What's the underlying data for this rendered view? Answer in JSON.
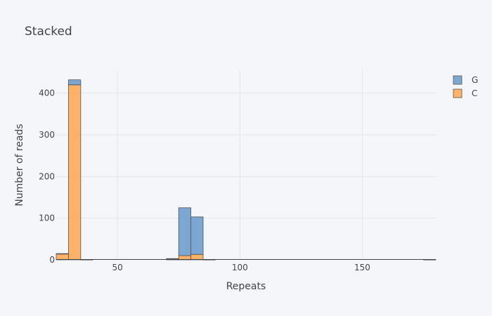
{
  "chart_data": {
    "type": "bar",
    "stacked": true,
    "title": "Stacked",
    "xlabel": "Repeats",
    "ylabel": "Number of reads",
    "xlim": [
      25,
      180
    ],
    "ylim": [
      0,
      455
    ],
    "bin_width": 5,
    "x_ticks": [
      50,
      100,
      150
    ],
    "y_ticks": [
      0,
      100,
      200,
      300,
      400
    ],
    "grid": true,
    "legend": "top-right",
    "bin_starts": [
      25,
      30,
      35,
      40,
      45,
      50,
      55,
      60,
      65,
      70,
      75,
      80,
      85,
      90,
      95,
      100,
      105,
      110,
      115,
      120,
      125,
      130,
      135,
      140,
      145,
      150,
      155,
      160,
      165,
      170,
      175
    ],
    "series": [
      {
        "name": "C",
        "color": "#ffa64d",
        "values": [
          14,
          420,
          1,
          0,
          0,
          0,
          0,
          0,
          0,
          2,
          10,
          13,
          1,
          0,
          0,
          0,
          0,
          0,
          0,
          0,
          0,
          0,
          0,
          0,
          0,
          0,
          0,
          0,
          0,
          0,
          0
        ]
      },
      {
        "name": "G",
        "color": "#6699cc",
        "values": [
          1,
          12,
          0,
          0,
          0,
          0,
          0,
          0,
          0,
          1,
          115,
          90,
          0,
          0,
          0,
          0,
          0,
          0,
          0,
          0,
          0,
          0,
          0,
          0,
          0,
          0,
          0,
          0,
          0,
          0,
          1
        ]
      }
    ]
  }
}
